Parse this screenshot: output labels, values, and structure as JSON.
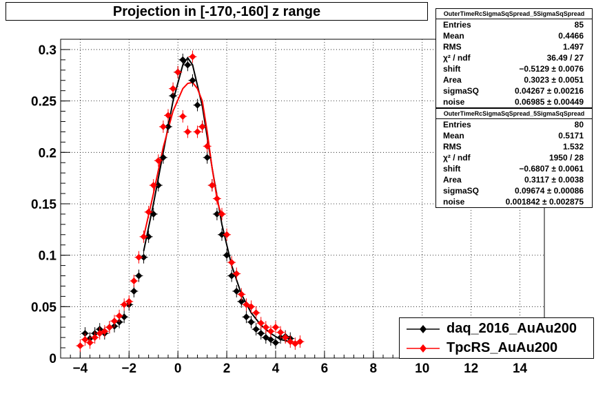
{
  "title": "Projection in [-170,-160] z range",
  "stats_boxes": [
    {
      "header": "OuterTimeRcSigmaSqSpread_5SigmaSqSpread",
      "rows": [
        {
          "label": "Entries",
          "value": "85"
        },
        {
          "label": "Mean",
          "value": "0.4466"
        },
        {
          "label": "RMS",
          "value": "1.497"
        },
        {
          "label": "χ² / ndf",
          "value": "36.49 / 27"
        },
        {
          "label": "shift",
          "value": "−0.5129 ± 0.0076"
        },
        {
          "label": "Area",
          "value": "0.3023 ± 0.0051"
        },
        {
          "label": "sigmaSQ",
          "value": "0.04267 ± 0.00216"
        },
        {
          "label": "noise",
          "value": "0.06985 ± 0.00449"
        }
      ]
    },
    {
      "header": "OuterTimeRcSigmaSqSpread_5SigmaSqSpread",
      "rows": [
        {
          "label": "Entries",
          "value": "80"
        },
        {
          "label": "Mean",
          "value": "0.5171"
        },
        {
          "label": "RMS",
          "value": "1.532"
        },
        {
          "label": "χ² / ndf",
          "value": "1950 / 28"
        },
        {
          "label": "shift",
          "value": "−0.6807 ± 0.0061"
        },
        {
          "label": "Area",
          "value": "0.3117 ± 0.0038"
        },
        {
          "label": "sigmaSQ",
          "value": "0.09674 ± 0.00086"
        },
        {
          "label": "noise",
          "value": "0.001842 ± 0.002875"
        }
      ]
    }
  ],
  "legend": [
    {
      "label": "daq_2016_AuAu200",
      "color": "#000000"
    },
    {
      "label": "TpcRS_AuAu200",
      "color": "#ff0000"
    }
  ],
  "chart_data": {
    "type": "scatter",
    "title": "Projection in [-170,-160] z range",
    "xlim": [
      -4.8,
      15
    ],
    "ylim": [
      0,
      0.31
    ],
    "x_ticks": [
      -4,
      -2,
      0,
      2,
      4,
      6,
      8,
      10,
      12,
      14
    ],
    "x_tick_labels": [
      "−4",
      "−2",
      "0",
      "2",
      "4",
      "6",
      "8",
      "10",
      "12",
      "14"
    ],
    "y_ticks": [
      0,
      0.05,
      0.1,
      0.15,
      0.2,
      0.25,
      0.3
    ],
    "y_tick_labels": [
      "0",
      "0.05",
      "0.1",
      "0.15",
      "0.2",
      "0.25",
      "0.3"
    ],
    "grid": true,
    "legend_position": "bottom-right",
    "series": [
      {
        "name": "daq_2016_AuAu200",
        "color": "#000000",
        "marker": "diamond",
        "x": [
          -3.8,
          -3.6,
          -3.4,
          -3.2,
          -3.0,
          -2.8,
          -2.6,
          -2.4,
          -2.2,
          -2.0,
          -1.8,
          -1.6,
          -1.4,
          -1.2,
          -1.0,
          -0.8,
          -0.6,
          -0.4,
          -0.2,
          0.0,
          0.2,
          0.4,
          0.6,
          0.8,
          1.0,
          1.2,
          1.4,
          1.6,
          1.8,
          2.0,
          2.2,
          2.4,
          2.6,
          2.8,
          3.0,
          3.2,
          3.4,
          3.6,
          3.8,
          4.0,
          4.2,
          4.4,
          4.6
        ],
        "y": [
          0.024,
          0.019,
          0.024,
          0.028,
          0.024,
          0.03,
          0.031,
          0.035,
          0.04,
          0.052,
          0.065,
          0.08,
          0.098,
          0.118,
          0.14,
          0.168,
          0.195,
          0.225,
          0.255,
          0.278,
          0.29,
          0.285,
          0.27,
          0.246,
          0.225,
          0.195,
          0.168,
          0.14,
          0.12,
          0.1,
          0.08,
          0.065,
          0.055,
          0.04,
          0.035,
          0.028,
          0.024,
          0.02,
          0.018,
          0.015,
          0.02,
          0.021,
          0.019
        ],
        "fit": {
          "x": [
            -1.4,
            -1.0,
            -0.6,
            -0.2,
            0.2,
            0.4,
            0.6,
            1.0,
            1.4,
            1.8,
            2.2,
            2.6,
            3.0,
            3.4,
            3.8,
            4.2,
            4.6
          ],
          "y": [
            0.104,
            0.15,
            0.2,
            0.25,
            0.285,
            0.292,
            0.285,
            0.245,
            0.185,
            0.13,
            0.09,
            0.062,
            0.044,
            0.032,
            0.024,
            0.018,
            0.016
          ]
        }
      },
      {
        "name": "TpcRS_AuAu200",
        "color": "#ff0000",
        "marker": "diamond",
        "x": [
          -4.0,
          -3.8,
          -3.6,
          -3.4,
          -3.2,
          -3.0,
          -2.8,
          -2.6,
          -2.4,
          -2.2,
          -2.0,
          -1.8,
          -1.6,
          -1.4,
          -1.2,
          -1.0,
          -0.8,
          -0.6,
          -0.4,
          -0.2,
          0.0,
          0.2,
          0.4,
          0.6,
          0.8,
          1.0,
          1.2,
          1.4,
          1.6,
          1.8,
          2.0,
          2.2,
          2.4,
          2.6,
          2.8,
          3.0,
          3.2,
          3.4,
          3.6,
          3.8,
          4.0,
          4.2,
          4.4,
          4.6,
          4.8,
          5.0
        ],
        "y": [
          0.012,
          0.018,
          0.015,
          0.02,
          0.024,
          0.026,
          0.03,
          0.036,
          0.041,
          0.052,
          0.055,
          0.075,
          0.098,
          0.118,
          0.142,
          0.168,
          0.192,
          0.225,
          0.236,
          0.262,
          0.278,
          0.235,
          0.22,
          0.293,
          0.22,
          0.225,
          0.206,
          0.168,
          0.155,
          0.14,
          0.12,
          0.093,
          0.082,
          0.062,
          0.052,
          0.05,
          0.044,
          0.034,
          0.03,
          0.026,
          0.03,
          0.025,
          0.02,
          0.016,
          0.014,
          0.016
        ],
        "fit": {
          "x": [
            -1.4,
            -1.0,
            -0.6,
            -0.2,
            0.2,
            0.4,
            0.6,
            0.8,
            1.0,
            1.2,
            1.4,
            1.6,
            1.7,
            1.8
          ],
          "y": [
            0.118,
            0.16,
            0.205,
            0.24,
            0.262,
            0.267,
            0.268,
            0.262,
            0.25,
            0.22,
            0.185,
            0.155,
            0.145,
            0.14
          ]
        }
      }
    ]
  }
}
